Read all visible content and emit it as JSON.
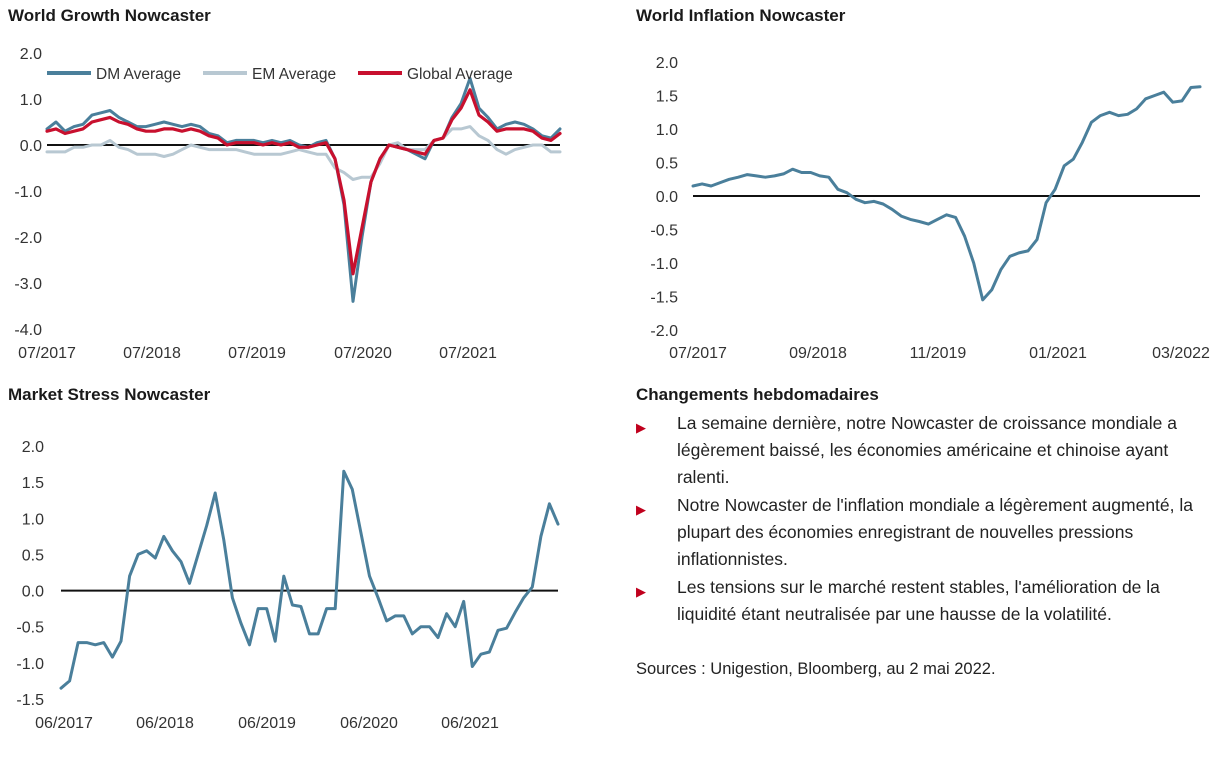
{
  "chart_data": [
    {
      "type": "line",
      "title": "World Growth Nowcaster",
      "xlabel": "",
      "ylabel": "",
      "x_ticks": [
        "07/2017",
        "07/2018",
        "07/2019",
        "07/2020",
        "07/2021"
      ],
      "y_ticks": [
        "2.0",
        "1.0",
        "0.0",
        "-1.0",
        "-2.0",
        "-3.0",
        "-4.0"
      ],
      "ylim": [
        -4.0,
        2.0
      ],
      "x_range": [
        "07/2017",
        "03/2022"
      ],
      "zero_line": true,
      "legend_position": "top",
      "series": [
        {
          "name": "DM Average",
          "color": "#4a7f9b",
          "values": [
            0.35,
            0.5,
            0.3,
            0.4,
            0.45,
            0.65,
            0.7,
            0.75,
            0.6,
            0.5,
            0.4,
            0.4,
            0.45,
            0.5,
            0.45,
            0.4,
            0.45,
            0.4,
            0.25,
            0.2,
            0.05,
            0.1,
            0.1,
            0.1,
            0.05,
            0.1,
            0.05,
            0.1,
            0.0,
            -0.05,
            0.05,
            0.1,
            -0.3,
            -1.3,
            -3.4,
            -2.0,
            -0.8,
            -0.3,
            0.0,
            -0.05,
            -0.1,
            -0.2,
            -0.3,
            0.1,
            0.15,
            0.6,
            0.9,
            1.45,
            0.8,
            0.6,
            0.35,
            0.45,
            0.5,
            0.45,
            0.35,
            0.2,
            0.15,
            0.35
          ]
        },
        {
          "name": "EM Average",
          "color": "#b8c8d2",
          "values": [
            -0.15,
            -0.15,
            -0.15,
            -0.05,
            -0.05,
            0.0,
            0.0,
            0.1,
            -0.05,
            -0.1,
            -0.2,
            -0.2,
            -0.2,
            -0.25,
            -0.2,
            -0.1,
            0.0,
            -0.05,
            -0.1,
            -0.1,
            -0.1,
            -0.1,
            -0.15,
            -0.2,
            -0.2,
            -0.2,
            -0.2,
            -0.15,
            -0.1,
            -0.15,
            -0.2,
            -0.2,
            -0.5,
            -0.6,
            -0.75,
            -0.7,
            -0.7,
            -0.4,
            0.0,
            0.05,
            -0.1,
            -0.1,
            -0.1,
            0.1,
            0.15,
            0.35,
            0.35,
            0.4,
            0.2,
            0.1,
            -0.1,
            -0.2,
            -0.1,
            -0.05,
            0.0,
            0.0,
            -0.15,
            -0.15
          ]
        },
        {
          "name": "Global Average",
          "color": "#c8102e",
          "values": [
            0.3,
            0.35,
            0.25,
            0.3,
            0.35,
            0.5,
            0.55,
            0.6,
            0.5,
            0.45,
            0.35,
            0.3,
            0.3,
            0.35,
            0.35,
            0.3,
            0.35,
            0.3,
            0.2,
            0.15,
            0.0,
            0.05,
            0.05,
            0.05,
            0.0,
            0.05,
            0.0,
            0.05,
            -0.05,
            -0.05,
            0.0,
            0.05,
            -0.3,
            -1.2,
            -2.8,
            -1.8,
            -0.8,
            -0.3,
            0.0,
            -0.05,
            -0.1,
            -0.15,
            -0.2,
            0.1,
            0.15,
            0.55,
            0.8,
            1.2,
            0.65,
            0.5,
            0.3,
            0.35,
            0.35,
            0.35,
            0.3,
            0.15,
            0.1,
            0.25
          ]
        }
      ]
    },
    {
      "type": "line",
      "title": "World Inflation Nowcaster",
      "xlabel": "",
      "ylabel": "",
      "x_ticks": [
        "07/2017",
        "09/2018",
        "11/2019",
        "01/2021",
        "03/2022"
      ],
      "y_ticks": [
        "2.0",
        "1.5",
        "1.0",
        "0.5",
        "0.0",
        "-0.5",
        "-1.0",
        "-1.5",
        "-2.0"
      ],
      "ylim": [
        -2.0,
        2.0
      ],
      "x_range": [
        "07/2017",
        "03/2022"
      ],
      "zero_line": true,
      "series": [
        {
          "name": "",
          "color": "#4a7f9b",
          "values": [
            0.15,
            0.18,
            0.15,
            0.2,
            0.25,
            0.28,
            0.32,
            0.3,
            0.28,
            0.3,
            0.33,
            0.4,
            0.35,
            0.35,
            0.3,
            0.28,
            0.1,
            0.05,
            -0.05,
            -0.1,
            -0.08,
            -0.12,
            -0.2,
            -0.3,
            -0.35,
            -0.38,
            -0.42,
            -0.35,
            -0.28,
            -0.32,
            -0.6,
            -1.0,
            -1.55,
            -1.4,
            -1.1,
            -0.9,
            -0.85,
            -0.82,
            -0.65,
            -0.1,
            0.1,
            0.45,
            0.55,
            0.8,
            1.1,
            1.2,
            1.25,
            1.2,
            1.22,
            1.3,
            1.45,
            1.5,
            1.55,
            1.4,
            1.42,
            1.62,
            1.63
          ]
        }
      ]
    },
    {
      "type": "line",
      "title": "Market Stress Nowcaster",
      "xlabel": "",
      "ylabel": "",
      "x_ticks": [
        "06/2017",
        "06/2018",
        "06/2019",
        "06/2020",
        "06/2021"
      ],
      "y_ticks": [
        "2.0",
        "1.5",
        "1.0",
        "0.5",
        "0.0",
        "-0.5",
        "-1.0",
        "-1.5"
      ],
      "ylim": [
        -1.5,
        2.0
      ],
      "x_range": [
        "06/2017",
        "03/2022"
      ],
      "zero_line": true,
      "series": [
        {
          "name": "",
          "color": "#4a7f9b",
          "values": [
            -1.35,
            -1.25,
            -0.72,
            -0.72,
            -0.75,
            -0.72,
            -0.92,
            -0.7,
            0.2,
            0.5,
            0.55,
            0.45,
            0.75,
            0.55,
            0.4,
            0.1,
            0.5,
            0.9,
            1.35,
            0.7,
            -0.1,
            -0.45,
            -0.75,
            -0.25,
            -0.25,
            -0.7,
            0.2,
            -0.2,
            -0.22,
            -0.6,
            -0.6,
            -0.25,
            -0.25,
            1.65,
            1.4,
            0.8,
            0.2,
            -0.1,
            -0.42,
            -0.35,
            -0.35,
            -0.6,
            -0.5,
            -0.5,
            -0.65,
            -0.32,
            -0.5,
            -0.15,
            -1.05,
            -0.88,
            -0.85,
            -0.55,
            -0.52,
            -0.3,
            -0.1,
            0.05,
            0.75,
            1.2,
            0.92
          ]
        }
      ]
    }
  ],
  "side_panel": {
    "title": "Changements hebdomadaires",
    "bullet_marker": "▶",
    "bullets": [
      "La semaine dernière, notre Nowcaster de croissance mondiale a légèrement baissé, les économies américaine et chinoise ayant ralenti.",
      "Notre Nowcaster de l'inflation mondiale a légèrement augmenté, la plupart des économies enregistrant de nouvelles pressions inflationnistes.",
      "Les tensions sur le marché restent stables, l'amélioration de la liquidité étant neutralisée par une hausse de la volatilité."
    ],
    "sources": "Sources : Unigestion, Bloomberg, au 2 mai 2022."
  }
}
